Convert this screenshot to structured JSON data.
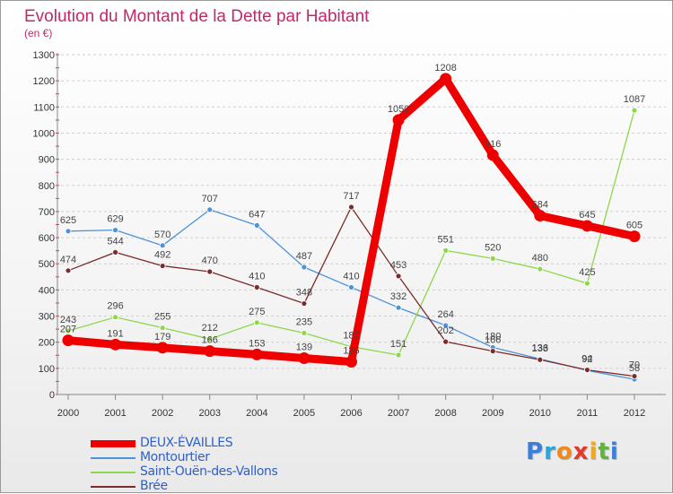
{
  "chart_data": {
    "type": "line",
    "title": "Evolution du Montant de la Dette par Habitant",
    "subtitle": "(en €)",
    "x": [
      "2000",
      "2001",
      "2002",
      "2003",
      "2004",
      "2005",
      "2006",
      "2007",
      "2008",
      "2009",
      "2010",
      "2011",
      "2012"
    ],
    "y_ticks": [
      "0",
      "100",
      "200",
      "300",
      "400",
      "500",
      "600",
      "700",
      "800",
      "900",
      "1000",
      "1100",
      "1200",
      "1300"
    ],
    "ylim": [
      0,
      1300
    ],
    "grid": "horizontal dashed",
    "legend_position": "bottom-left",
    "series": [
      {
        "name": "DEUX-ÉVAILLES",
        "color": "#ee0000",
        "width": "thick",
        "values": [
          207,
          191,
          179,
          166,
          153,
          139,
          125,
          1050,
          1208,
          916,
          684,
          645,
          605
        ],
        "labels": [
          "207",
          "191",
          "179",
          "166",
          "153",
          "139",
          "125",
          "1050",
          "1208",
          "916",
          "684",
          "645",
          "605"
        ]
      },
      {
        "name": "Montourtier",
        "color": "#4f92d8",
        "width": "thin",
        "values": [
          625,
          629,
          570,
          707,
          647,
          487,
          410,
          332,
          264,
          180,
          136,
          92,
          58
        ],
        "labels": [
          "625",
          "629",
          "570",
          "707",
          "647",
          "487",
          "410",
          "332",
          "264",
          "180",
          "136",
          "92",
          "58"
        ]
      },
      {
        "name": "Saint-Ouën-des-Vallons",
        "color": "#8ed64a",
        "width": "thin",
        "values": [
          243,
          296,
          255,
          212,
          275,
          235,
          183,
          151,
          551,
          520,
          480,
          425,
          1087
        ],
        "labels": [
          "243",
          "296",
          "255",
          "212",
          "275",
          "235",
          "183",
          "151",
          "551",
          "520",
          "480",
          "425",
          "1087"
        ]
      },
      {
        "name": "Brée",
        "color": "#7a2b2b",
        "width": "thin",
        "values": [
          474,
          544,
          492,
          470,
          410,
          348,
          717,
          453,
          202,
          166,
          133,
          94,
          70
        ],
        "labels": [
          "474",
          "544",
          "492",
          "470",
          "410",
          "348",
          "717",
          "453",
          "202",
          "166",
          "133",
          "94",
          "70"
        ]
      }
    ]
  },
  "logo": {
    "text": "Proxiti",
    "letters": [
      "P",
      "r",
      "o",
      "x",
      "i",
      "t",
      "i"
    ],
    "colors": [
      "#3c7fd8",
      "#2fa3d8",
      "#f08a1c",
      "#e23a2a",
      "#f0a818",
      "#5fb53a",
      "#3c7fd8"
    ]
  }
}
